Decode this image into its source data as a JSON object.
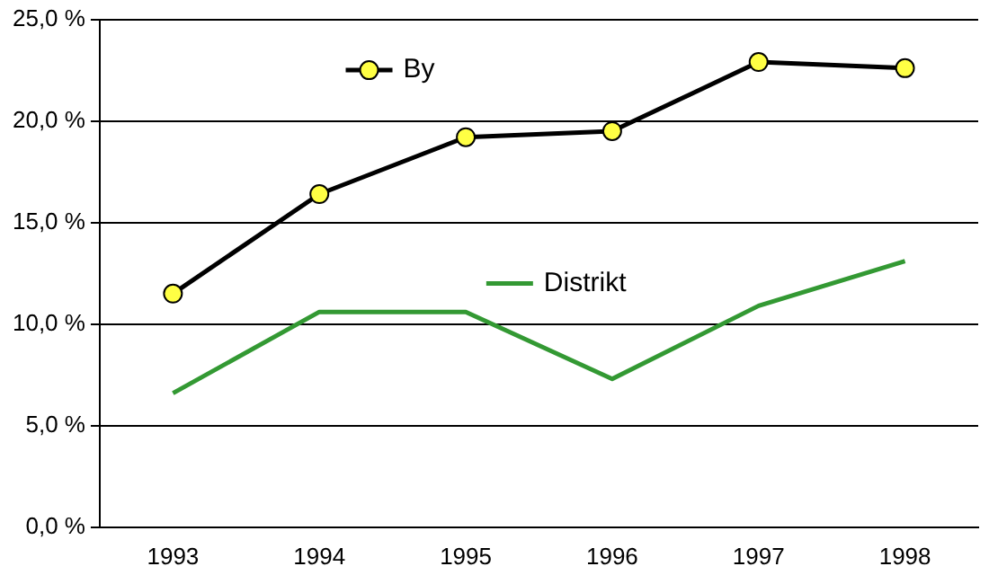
{
  "chart_data": {
    "type": "line",
    "categories": [
      "1993",
      "1994",
      "1995",
      "1996",
      "1997",
      "1998"
    ],
    "series": [
      {
        "name": "By",
        "color": "#000000",
        "marker": "circle",
        "values": [
          11.5,
          16.4,
          19.2,
          19.5,
          22.9,
          22.6
        ]
      },
      {
        "name": "Distrikt",
        "color": "#339933",
        "marker": "none",
        "values": [
          6.6,
          10.6,
          10.6,
          7.3,
          10.9,
          13.1
        ]
      }
    ],
    "ylim": [
      0,
      25
    ],
    "yticks": [
      {
        "value": 0,
        "label": "0,0 %"
      },
      {
        "value": 5,
        "label": "5,0 %"
      },
      {
        "value": 10,
        "label": "10,0 %"
      },
      {
        "value": 15,
        "label": "15,0 %"
      },
      {
        "value": 20,
        "label": "20,0 %"
      },
      {
        "value": 25,
        "label": "25,0 %"
      }
    ],
    "grid": "y",
    "legend": "top",
    "line_style": "solid"
  }
}
